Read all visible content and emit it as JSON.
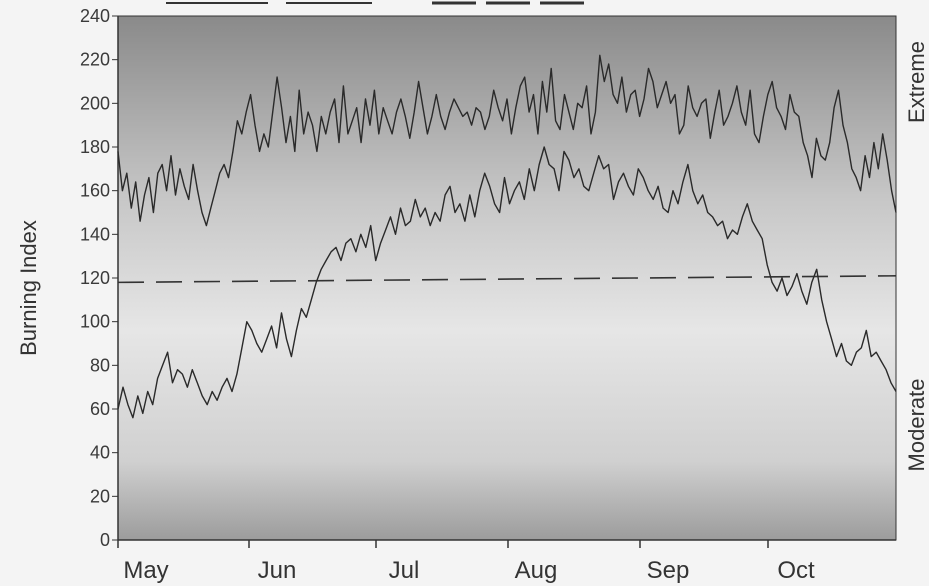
{
  "chart_data": {
    "type": "line",
    "title": "",
    "ylabel": "Burning Index",
    "xlabel": "",
    "ylim": [
      0,
      240
    ],
    "yticks": [
      "0",
      "20",
      "40",
      "60",
      "80",
      "100",
      "120",
      "140",
      "160",
      "180",
      "200",
      "220",
      "240"
    ],
    "months": [
      "May",
      "Jun",
      "Jul",
      "Aug",
      "Sep",
      "Oct"
    ],
    "side_labels": {
      "top": "Extreme",
      "bottom": "Moderate"
    },
    "reference_line": {
      "value": 118,
      "style": "dashed"
    },
    "series": [
      {
        "values": [
          178,
          160,
          168,
          152,
          164,
          146,
          158,
          166,
          150,
          168,
          172,
          160,
          176,
          158,
          170,
          162,
          156,
          172,
          160,
          150,
          144,
          152,
          160,
          168,
          172,
          166,
          178,
          192,
          186,
          196,
          204,
          190,
          178,
          186,
          180,
          196,
          212,
          198,
          182,
          194,
          178,
          206,
          186,
          196,
          190,
          178,
          194,
          186,
          196,
          202,
          182,
          208,
          186,
          192,
          198,
          182,
          202,
          190,
          206,
          186,
          198,
          192,
          186,
          196,
          202,
          194,
          184,
          196,
          210,
          198,
          186,
          194,
          204,
          194,
          188,
          196,
          202,
          198,
          194,
          196,
          190,
          198,
          196,
          188,
          194,
          206,
          198,
          192,
          202,
          186,
          198,
          208,
          212,
          196,
          204,
          186,
          210,
          196,
          216,
          192,
          188,
          204,
          196,
          188,
          200,
          198,
          208,
          186,
          196,
          222,
          210,
          218,
          204,
          200,
          212,
          196,
          204,
          206,
          194,
          202,
          216,
          210,
          198,
          204,
          210,
          200,
          204,
          186,
          190,
          208,
          198,
          194,
          200,
          202,
          184,
          196,
          206,
          190,
          194,
          200,
          208,
          196,
          190,
          206,
          186,
          182,
          194,
          204,
          210,
          198,
          194,
          188,
          204,
          196,
          194,
          182,
          176,
          166,
          184,
          176,
          174,
          182,
          198,
          206,
          190,
          182,
          170,
          166,
          160,
          176,
          166,
          182,
          170,
          186,
          174,
          160,
          150
        ],
        "color": "#2a2a2a"
      },
      {
        "values": [
          60,
          70,
          62,
          56,
          66,
          58,
          68,
          62,
          74,
          80,
          86,
          72,
          78,
          76,
          70,
          78,
          72,
          66,
          62,
          68,
          64,
          70,
          74,
          68,
          76,
          88,
          100,
          96,
          90,
          86,
          92,
          98,
          88,
          104,
          92,
          84,
          96,
          106,
          102,
          110,
          118,
          124,
          128,
          132,
          134,
          128,
          136,
          138,
          132,
          140,
          134,
          144,
          128,
          136,
          142,
          148,
          140,
          152,
          144,
          146,
          156,
          148,
          152,
          144,
          150,
          146,
          158,
          162,
          150,
          154,
          146,
          158,
          148,
          160,
          168,
          162,
          154,
          150,
          166,
          154,
          160,
          164,
          156,
          170,
          160,
          172,
          180,
          172,
          170,
          160,
          178,
          174,
          166,
          170,
          162,
          160,
          168,
          176,
          170,
          172,
          156,
          164,
          168,
          162,
          158,
          170,
          166,
          160,
          156,
          162,
          152,
          150,
          160,
          154,
          164,
          172,
          160,
          154,
          158,
          150,
          148,
          144,
          146,
          138,
          142,
          140,
          148,
          154,
          146,
          142,
          138,
          126,
          118,
          114,
          120,
          112,
          116,
          122,
          114,
          108,
          118,
          124,
          110,
          100,
          92,
          84,
          90,
          82,
          80,
          86,
          88,
          96,
          84,
          86,
          82,
          78,
          72,
          68
        ],
        "color": "#2a2a2a"
      }
    ]
  }
}
